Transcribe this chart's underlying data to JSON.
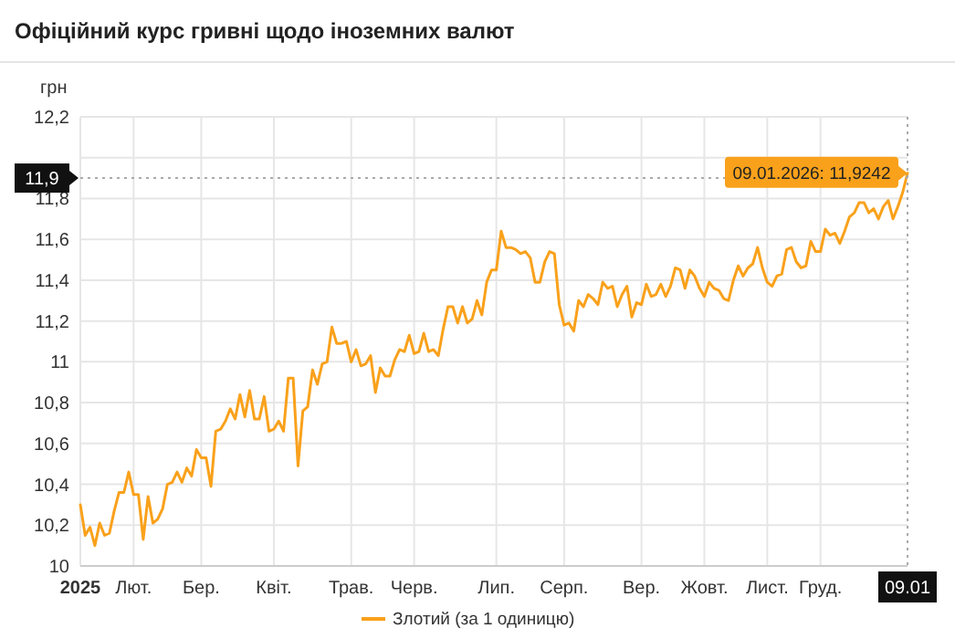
{
  "chart_data": {
    "type": "line",
    "title": "Офіційний курс гривні щодо іноземних валют",
    "ylabel": "грн",
    "categories": [
      "2025",
      null,
      null,
      null,
      null,
      null,
      null,
      null,
      null,
      null,
      null,
      "Лют.",
      null,
      null,
      null,
      null,
      null,
      null,
      null,
      null,
      null,
      null,
      null,
      null,
      null,
      "Бер.",
      null,
      null,
      null,
      null,
      null,
      null,
      null,
      null,
      null,
      null,
      null,
      null,
      null,
      null,
      "Квіт.",
      null,
      null,
      null,
      null,
      null,
      null,
      null,
      null,
      null,
      null,
      null,
      null,
      null,
      null,
      null,
      "Трав.",
      null,
      null,
      null,
      null,
      null,
      null,
      null,
      null,
      null,
      null,
      null,
      null,
      "Черв.",
      null,
      null,
      null,
      null,
      null,
      null,
      null,
      null,
      null,
      null,
      null,
      null,
      null,
      null,
      null,
      null,
      "Лип.",
      null,
      null,
      null,
      null,
      null,
      null,
      null,
      null,
      null,
      null,
      null,
      null,
      null,
      "Серп.",
      null,
      null,
      null,
      null,
      null,
      null,
      null,
      null,
      null,
      null,
      null,
      null,
      null,
      null,
      null,
      "Вер.",
      null,
      null,
      null,
      null,
      null,
      null,
      null,
      null,
      null,
      null,
      null,
      null,
      "Жовт.",
      null,
      null,
      null,
      null,
      null,
      null,
      null,
      null,
      null,
      null,
      null,
      null,
      "Лист.",
      null,
      null,
      null,
      null,
      null,
      null,
      null,
      null,
      null,
      null,
      "Груд.",
      null,
      null,
      null,
      null,
      null,
      null,
      null,
      null,
      null,
      null,
      null,
      null,
      null,
      null,
      null,
      null,
      null,
      "09.01"
    ],
    "ylim": [
      10,
      12.2
    ],
    "yticks": [
      10,
      {
        "value": 10.2,
        "label": "10,2"
      },
      {
        "value": 10.4,
        "label": "10,4"
      },
      {
        "value": 10.6,
        "label": "10,6"
      },
      {
        "value": 10.8,
        "label": "10,8"
      },
      11,
      {
        "value": 11.2,
        "label": "11,2"
      },
      {
        "value": 11.4,
        "label": "11,4"
      },
      {
        "value": 11.6,
        "label": "11,6"
      },
      {
        "value": 11.8,
        "label": "11,8"
      },
      {
        "value": 12,
        "label": null
      },
      {
        "value": 12.2,
        "label": "12,2"
      }
    ],
    "grid": true,
    "legend": "bottom",
    "line_style": "solid",
    "ref_lines": [
      {
        "axis": "y",
        "value": 11.9,
        "label": "11,9",
        "line_style": "dotted",
        "color": "#aaaaaa"
      },
      {
        "axis": "x",
        "value": "09.01",
        "line_style": "dotted",
        "color": "#aaaaaa"
      }
    ],
    "annotations": [
      {
        "text": "09.01.2026: 11,9242",
        "x": "09.01",
        "y": 11.9242
      }
    ],
    "series": [
      {
        "name": "Злотий (за 1 одиницю)",
        "color": "#f9a11b",
        "values": [
          10.3,
          10.15,
          10.19,
          10.1,
          10.21,
          10.15,
          10.16,
          10.27,
          10.36,
          10.36,
          10.46,
          10.35,
          10.35,
          10.13,
          10.34,
          10.21,
          10.23,
          10.28,
          10.4,
          10.41,
          10.46,
          10.41,
          10.48,
          10.44,
          10.57,
          10.53,
          10.53,
          10.39,
          10.66,
          10.67,
          10.71,
          10.77,
          10.72,
          10.84,
          10.73,
          10.86,
          10.72,
          10.72,
          10.83,
          10.66,
          10.67,
          10.71,
          10.66,
          10.92,
          10.92,
          10.49,
          10.76,
          10.78,
          10.96,
          10.89,
          10.99,
          11.0,
          11.17,
          11.09,
          11.09,
          11.1,
          11.0,
          11.06,
          10.98,
          10.99,
          11.03,
          10.85,
          10.97,
          10.93,
          10.93,
          11.01,
          11.06,
          11.05,
          11.13,
          11.04,
          11.05,
          11.14,
          11.05,
          11.06,
          11.03,
          11.16,
          11.27,
          11.27,
          11.19,
          11.27,
          11.19,
          11.21,
          11.3,
          11.23,
          11.39,
          11.45,
          11.45,
          11.64,
          11.56,
          11.56,
          11.55,
          11.53,
          11.54,
          11.51,
          11.39,
          11.39,
          11.49,
          11.54,
          11.53,
          11.28,
          11.18,
          11.19,
          11.15,
          11.3,
          11.27,
          11.33,
          11.31,
          11.28,
          11.39,
          11.36,
          11.37,
          11.27,
          11.33,
          11.37,
          11.22,
          11.29,
          11.28,
          11.38,
          11.32,
          11.33,
          11.38,
          11.32,
          11.37,
          11.46,
          11.45,
          11.36,
          11.45,
          11.42,
          11.36,
          11.32,
          11.39,
          11.36,
          11.35,
          11.31,
          11.3,
          11.4,
          11.47,
          11.42,
          11.46,
          11.48,
          11.56,
          11.46,
          11.39,
          11.37,
          11.42,
          11.43,
          11.55,
          11.56,
          11.49,
          11.46,
          11.47,
          11.59,
          11.54,
          11.54,
          11.65,
          11.62,
          11.63,
          11.58,
          11.64,
          11.71,
          11.73,
          11.78,
          11.78,
          11.73,
          11.75,
          11.7,
          11.76,
          11.79,
          11.7,
          11.76,
          11.83,
          11.9242
        ]
      }
    ]
  }
}
